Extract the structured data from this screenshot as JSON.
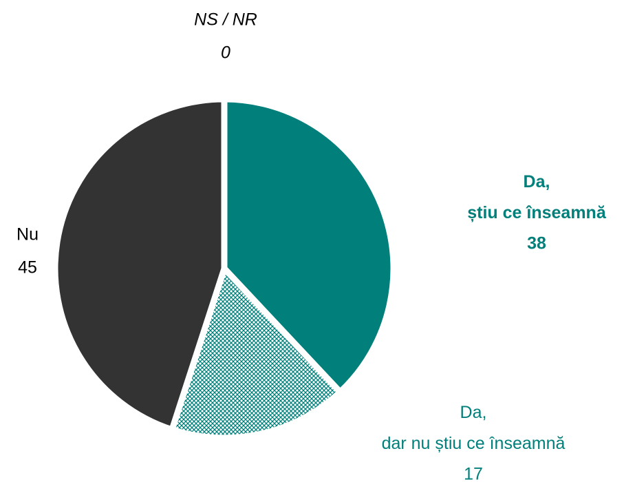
{
  "chart_data": {
    "type": "pie",
    "categories": [
      "Da, știu ce înseamnă",
      "Da, dar nu știu ce înseamnă",
      "Nu",
      "NS / NR"
    ],
    "values": [
      38,
      17,
      45,
      0
    ],
    "colors": [
      "#007f7b",
      "pattern",
      "#333333",
      "#999999"
    ]
  }
}
